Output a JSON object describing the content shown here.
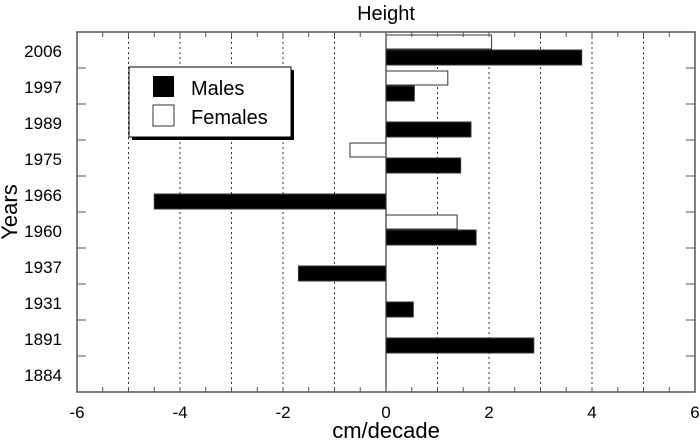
{
  "chart_data": {
    "type": "bar",
    "orientation": "horizontal",
    "title": "Height",
    "xlabel": "cm/decade",
    "ylabel": "Years",
    "xlim": [
      -6,
      6
    ],
    "xticks": [
      "-6",
      "-4",
      "-2",
      "0",
      "2",
      "4",
      "6"
    ],
    "xtick_values": [
      -6,
      -4,
      -2,
      0,
      2,
      4,
      6
    ],
    "grid": "vertical dotted at every 1 unit",
    "categories": [
      "2006",
      "1997",
      "1989",
      "1975",
      "1966",
      "1960",
      "1937",
      "1931",
      "1891",
      "1884"
    ],
    "series": [
      {
        "name": "Males",
        "color": "#000000",
        "values": [
          3.8,
          0.55,
          1.65,
          1.45,
          -4.5,
          1.75,
          -1.7,
          0.53,
          2.87,
          null
        ]
      },
      {
        "name": "Females",
        "color": "#ffffff",
        "values": [
          2.05,
          1.2,
          null,
          -0.7,
          null,
          1.38,
          null,
          null,
          null,
          null
        ]
      }
    ],
    "legend": {
      "position": "top-left",
      "entries": [
        "Males",
        "Females"
      ]
    }
  }
}
